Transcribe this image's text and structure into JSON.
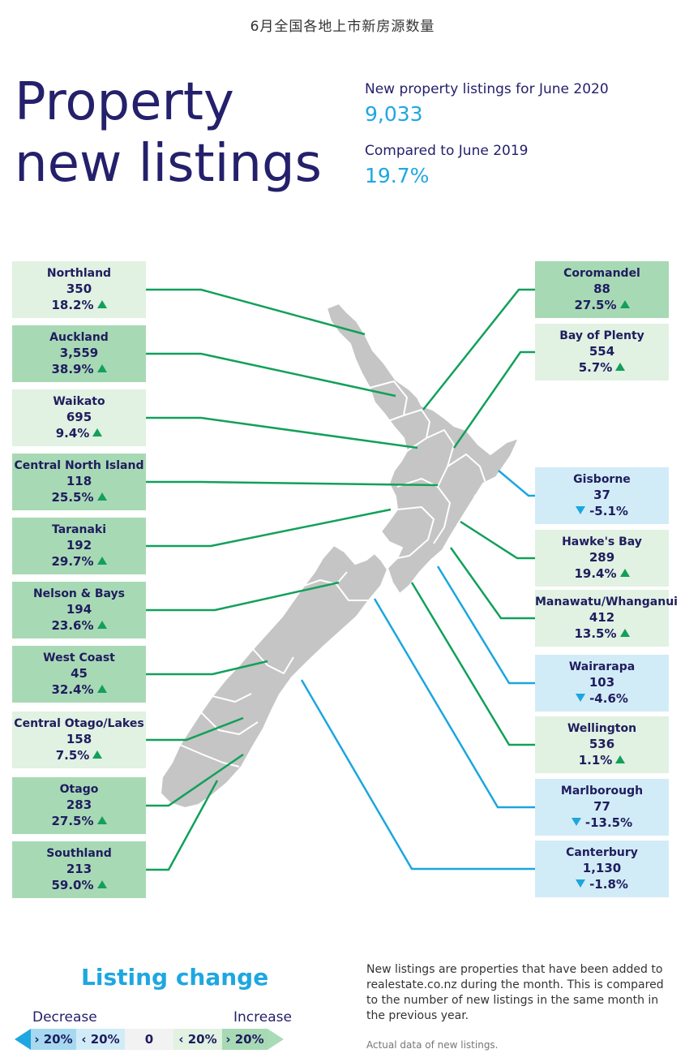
{
  "page_title_cn": "6月全国各地上市新房源数量",
  "title_line1": "Property",
  "title_line2": "new listings",
  "stat1_label": "New property listings for June 2020",
  "stat1_value": "9,033",
  "stat2_label": "Compared to June 2019",
  "stat2_value": "19.7%",
  "colors": {
    "title": "#24206b",
    "accent_blue": "#1ea7e1",
    "increase_strong": "#a8d9b5",
    "increase_light": "#e1f1e2",
    "decrease_light": "#d2ecf7",
    "decrease_strong": "#a6d9f0",
    "map_land": "#c5c5c5",
    "increase_line": "#12a05a",
    "decrease_line": "#1ba6df"
  },
  "regions_left": [
    {
      "name": "Northland",
      "value": "350",
      "change": "18.2%",
      "direction": "up",
      "level": "increase-light"
    },
    {
      "name": "Auckland",
      "value": "3,559",
      "change": "38.9%",
      "direction": "up",
      "level": "increase-strong"
    },
    {
      "name": "Waikato",
      "value": "695",
      "change": "9.4%",
      "direction": "up",
      "level": "increase-light"
    },
    {
      "name": "Central North Island",
      "value": "118",
      "change": "25.5%",
      "direction": "up",
      "level": "increase-strong"
    },
    {
      "name": "Taranaki",
      "value": "192",
      "change": "29.7%",
      "direction": "up",
      "level": "increase-strong"
    },
    {
      "name": "Nelson & Bays",
      "value": "194",
      "change": "23.6%",
      "direction": "up",
      "level": "increase-strong"
    },
    {
      "name": "West Coast",
      "value": "45",
      "change": "32.4%",
      "direction": "up",
      "level": "increase-strong"
    },
    {
      "name": "Central Otago/Lakes",
      "value": "158",
      "change": "7.5%",
      "direction": "up",
      "level": "increase-light"
    },
    {
      "name": "Otago",
      "value": "283",
      "change": "27.5%",
      "direction": "up",
      "level": "increase-strong"
    },
    {
      "name": "Southland",
      "value": "213",
      "change": "59.0%",
      "direction": "up",
      "level": "increase-strong"
    }
  ],
  "regions_right": [
    {
      "name": "Coromandel",
      "value": "88",
      "change": "27.5%",
      "direction": "up",
      "level": "increase-strong"
    },
    {
      "name": "Bay of Plenty",
      "value": "554",
      "change": "5.7%",
      "direction": "up",
      "level": "increase-light"
    },
    {
      "name": "Gisborne",
      "value": "37",
      "change": "-5.1%",
      "direction": "down",
      "level": "decrease-light"
    },
    {
      "name": "Hawke's Bay",
      "value": "289",
      "change": "19.4%",
      "direction": "up",
      "level": "increase-light"
    },
    {
      "name": "Manawatu/Whanganui",
      "value": "412",
      "change": "13.5%",
      "direction": "up",
      "level": "increase-light"
    },
    {
      "name": "Wairarapa",
      "value": "103",
      "change": "-4.6%",
      "direction": "down",
      "level": "decrease-light"
    },
    {
      "name": "Wellington",
      "value": "536",
      "change": "1.1%",
      "direction": "up",
      "level": "increase-light"
    },
    {
      "name": "Marlborough",
      "value": "77",
      "change": "-13.5%",
      "direction": "down",
      "level": "decrease-light"
    },
    {
      "name": "Canterbury",
      "value": "1,130",
      "change": "-1.8%",
      "direction": "down",
      "level": "decrease-light"
    }
  ],
  "legend": {
    "title": "Listing change",
    "decrease_label": "Decrease",
    "increase_label": "Increase",
    "cells": [
      "› 20%",
      "‹ 20%",
      "0",
      "‹ 20%",
      "› 20%"
    ]
  },
  "note": "New listings are properties that have been added to realestate.co.nz during the month. This is compared to the number of new listings in the same month in the previous year.",
  "note2": "Actual data of new listings."
}
